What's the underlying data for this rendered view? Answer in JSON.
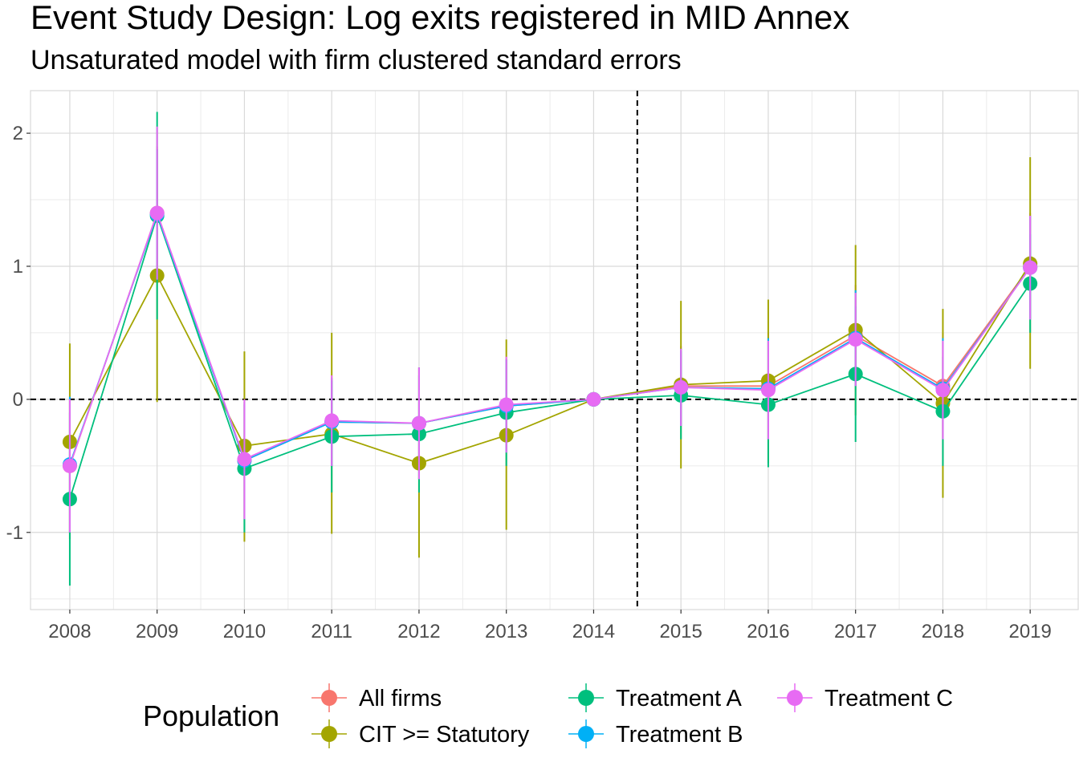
{
  "chart_data": {
    "type": "line",
    "title": "Event Study Design: Log exits registered in MID Annex",
    "subtitle": "Unsaturated model with firm clustered standard errors",
    "xlabel": "",
    "ylabel": "",
    "categories": [
      "2008",
      "2009",
      "2010",
      "2011",
      "2012",
      "2013",
      "2014",
      "2015",
      "2016",
      "2017",
      "2018",
      "2019"
    ],
    "xlim": [
      2007.55,
      2019.55
    ],
    "ylim": [
      -1.58,
      2.32
    ],
    "y_ticks": [
      -1,
      0,
      1,
      2
    ],
    "y_tick_labels": [
      "-1",
      "0",
      "1",
      "2"
    ],
    "reference_lines": {
      "horizontal": 0,
      "vertical": 2014.5
    },
    "grid": true,
    "legend": {
      "title": "Population",
      "position": "bottom"
    },
    "series": [
      {
        "name": "All firms",
        "color": "#F8766D",
        "values": [
          -0.5,
          1.4,
          -0.46,
          -0.17,
          -0.18,
          -0.05,
          0.0,
          0.1,
          0.1,
          0.48,
          0.1,
          1.0
        ],
        "lower": [
          -1.0,
          0.9,
          -0.9,
          -0.5,
          -0.6,
          -0.4,
          0.0,
          -0.2,
          -0.3,
          0.1,
          -0.3,
          0.6
        ],
        "upper": [
          0.0,
          1.9,
          -0.02,
          0.16,
          0.24,
          0.3,
          0.0,
          0.4,
          0.5,
          0.86,
          0.5,
          1.4
        ]
      },
      {
        "name": "CIT >= Statutory",
        "color": "#A3A500",
        "values": [
          -0.32,
          0.93,
          -0.35,
          -0.26,
          -0.48,
          -0.27,
          0.0,
          0.11,
          0.14,
          0.52,
          -0.03,
          1.02
        ],
        "lower": [
          -1.05,
          -0.02,
          -1.07,
          -1.01,
          -1.19,
          -0.98,
          0.0,
          -0.52,
          -0.48,
          -0.12,
          -0.74,
          0.23
        ],
        "upper": [
          0.42,
          1.88,
          0.36,
          0.5,
          0.24,
          0.45,
          0.0,
          0.74,
          0.75,
          1.16,
          0.68,
          1.82
        ]
      },
      {
        "name": "Treatment A",
        "color": "#00BF7D",
        "values": [
          -0.75,
          1.38,
          -0.52,
          -0.28,
          -0.26,
          -0.1,
          0.0,
          0.03,
          -0.04,
          0.19,
          -0.09,
          0.87
        ],
        "lower": [
          -1.4,
          0.6,
          -1.0,
          -0.7,
          -0.7,
          -0.5,
          0.0,
          -0.3,
          -0.51,
          -0.32,
          -0.5,
          0.5
        ],
        "upper": [
          -0.1,
          2.16,
          -0.04,
          0.14,
          0.18,
          0.3,
          0.0,
          0.36,
          0.43,
          0.7,
          0.32,
          1.24
        ]
      },
      {
        "name": "Treatment B",
        "color": "#00B0F6",
        "values": [
          -0.49,
          1.39,
          -0.46,
          -0.17,
          -0.18,
          -0.05,
          0.0,
          0.09,
          0.08,
          0.46,
          0.08,
          0.99
        ],
        "lower": [
          -1.0,
          0.9,
          -0.9,
          -0.5,
          -0.6,
          -0.4,
          0.0,
          -0.2,
          -0.3,
          0.1,
          -0.3,
          0.6
        ],
        "upper": [
          0.02,
          1.88,
          -0.02,
          0.16,
          0.24,
          0.3,
          0.0,
          0.38,
          0.46,
          0.82,
          0.46,
          1.38
        ]
      },
      {
        "name": "Treatment C",
        "color": "#E76BF3",
        "values": [
          -0.5,
          1.4,
          -0.45,
          -0.16,
          -0.18,
          -0.04,
          0.0,
          0.09,
          0.07,
          0.45,
          0.07,
          0.99
        ],
        "lower": [
          -1.0,
          0.9,
          -0.9,
          -0.5,
          -0.6,
          -0.4,
          0.0,
          -0.2,
          -0.3,
          0.1,
          -0.3,
          0.6
        ],
        "upper": [
          0.0,
          2.05,
          0.0,
          0.18,
          0.24,
          0.32,
          0.0,
          0.38,
          0.44,
          0.8,
          0.44,
          1.38
        ]
      }
    ]
  }
}
